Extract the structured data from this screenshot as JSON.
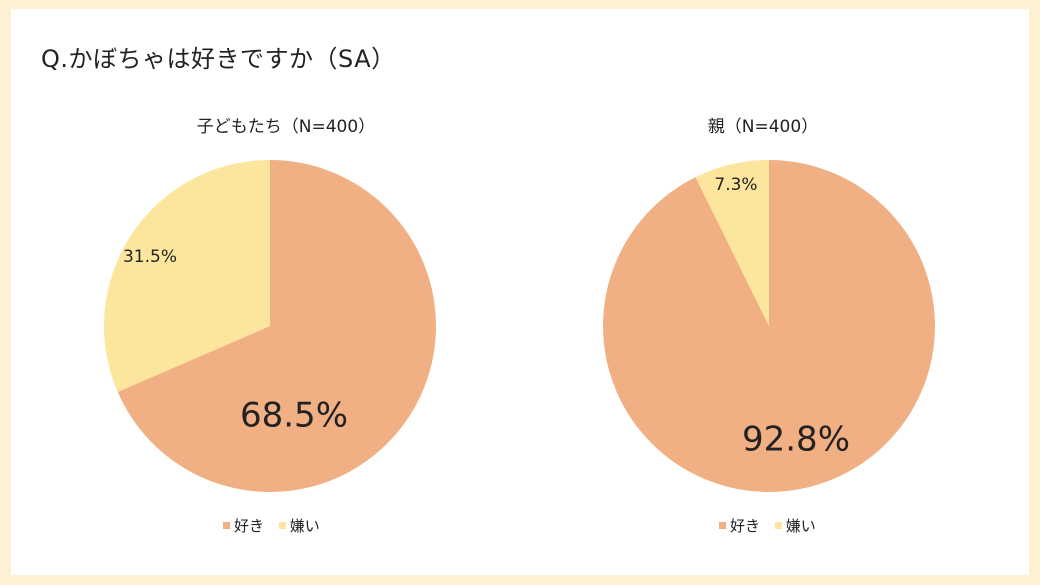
{
  "title": "Q.かぼちゃは好きですか（SA）",
  "colors": {
    "like": "#f1b084",
    "dislike": "#fce59c"
  },
  "chart_data": [
    {
      "type": "pie",
      "title": "子どもたち（N=400）",
      "labels": [
        "好き",
        "嫌い"
      ],
      "values": [
        68.5,
        31.5
      ],
      "value_labels": [
        "68.5%",
        "31.5%"
      ],
      "legend": "bottom"
    },
    {
      "type": "pie",
      "title": "親（N=400）",
      "labels": [
        "好き",
        "嫌い"
      ],
      "values": [
        92.8,
        7.3
      ],
      "value_labels": [
        "92.8%",
        "7.3%"
      ],
      "legend": "bottom"
    }
  ]
}
